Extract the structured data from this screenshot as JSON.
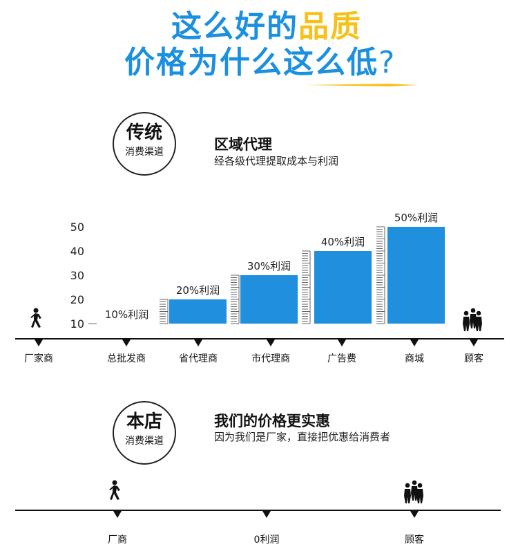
{
  "headline": {
    "line1_blue": "这么好的",
    "line1_yellow": "品质",
    "line2": "价格为什么这么低",
    "qmark": "?"
  },
  "colors": {
    "blue": "#1b8fe0",
    "yellow": "#f7c11a",
    "bar": "#1f8fde"
  },
  "traditional": {
    "circle_title": "传统",
    "circle_sub": "消费渠道",
    "title": "区域代理",
    "subtitle": "经各级代理提取成本与利润"
  },
  "ours": {
    "circle_title": "本店",
    "circle_sub": "消费渠道",
    "title": "我们的价格更实惠",
    "subtitle": "因为我们是厂家，直接把优惠给消费者"
  },
  "chart_data": {
    "type": "bar",
    "categories": [
      "总批发商",
      "省代理商",
      "市代理商",
      "广告费",
      "商城"
    ],
    "values": [
      10,
      20,
      30,
      40,
      50
    ],
    "value_labels": [
      "10%利润",
      "20%利润",
      "30%利润",
      "40%利润",
      "50%利润"
    ],
    "y_ticks": [
      "10",
      "20",
      "30",
      "40",
      "50"
    ],
    "ylim": [
      10,
      50
    ]
  },
  "chain1": {
    "start": "厂家商",
    "end": "顾客",
    "start_icon": "walking-person-icon",
    "end_icon": "customers-icon"
  },
  "chain2": {
    "labels": [
      "厂商",
      "0利润",
      "顾客"
    ],
    "start_icon": "walking-person-icon",
    "end_icon": "customers-icon"
  }
}
